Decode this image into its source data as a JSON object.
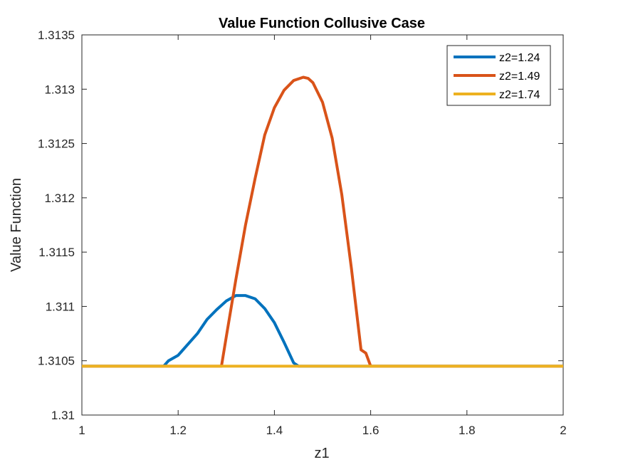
{
  "chart_data": {
    "type": "line",
    "title": "Value Function Collusive Case",
    "xlabel": "z1",
    "ylabel": "Value Function",
    "xlim": [
      1,
      2
    ],
    "ylim": [
      1.31,
      1.3135
    ],
    "xticks": [
      1,
      1.2,
      1.4,
      1.6,
      1.8,
      2
    ],
    "xtick_labels": [
      "1",
      "1.2",
      "1.4",
      "1.6",
      "1.8",
      "2"
    ],
    "yticks": [
      1.31,
      1.3105,
      1.311,
      1.3115,
      1.312,
      1.3125,
      1.313,
      1.3135
    ],
    "ytick_labels": [
      "1.31",
      "1.3105",
      "1.311",
      "1.3115",
      "1.312",
      "1.3125",
      "1.313",
      "1.3135"
    ],
    "grid": false,
    "legend_position": "top-right",
    "series": [
      {
        "name": "z2=1.24",
        "color": "#0072BD",
        "points": [
          [
            1,
            1.31045
          ],
          [
            1.17,
            1.31045
          ],
          [
            1.18,
            1.3105
          ],
          [
            1.2,
            1.31055
          ],
          [
            1.22,
            1.31065
          ],
          [
            1.24,
            1.31075
          ],
          [
            1.26,
            1.31088
          ],
          [
            1.28,
            1.31097
          ],
          [
            1.3,
            1.31105
          ],
          [
            1.32,
            1.3111
          ],
          [
            1.34,
            1.3111
          ],
          [
            1.36,
            1.31107
          ],
          [
            1.38,
            1.31098
          ],
          [
            1.4,
            1.31085
          ],
          [
            1.42,
            1.31067
          ],
          [
            1.44,
            1.31048
          ],
          [
            1.45,
            1.31045
          ],
          [
            2,
            1.31045
          ]
        ]
      },
      {
        "name": "z2=1.49",
        "color": "#D95319",
        "points": [
          [
            1,
            1.31045
          ],
          [
            1.29,
            1.31045
          ],
          [
            1.3,
            1.31072
          ],
          [
            1.32,
            1.31125
          ],
          [
            1.34,
            1.31175
          ],
          [
            1.36,
            1.31218
          ],
          [
            1.38,
            1.31258
          ],
          [
            1.4,
            1.31283
          ],
          [
            1.42,
            1.31299
          ],
          [
            1.44,
            1.31308
          ],
          [
            1.46,
            1.31311
          ],
          [
            1.47,
            1.3131
          ],
          [
            1.48,
            1.31306
          ],
          [
            1.5,
            1.31288
          ],
          [
            1.52,
            1.31255
          ],
          [
            1.54,
            1.31203
          ],
          [
            1.56,
            1.31135
          ],
          [
            1.58,
            1.3106
          ],
          [
            1.59,
            1.31057
          ],
          [
            1.6,
            1.31045
          ],
          [
            2,
            1.31045
          ]
        ]
      },
      {
        "name": "z2=1.74",
        "color": "#EDB120",
        "points": [
          [
            1,
            1.31045
          ],
          [
            2,
            1.31045
          ]
        ]
      }
    ]
  }
}
